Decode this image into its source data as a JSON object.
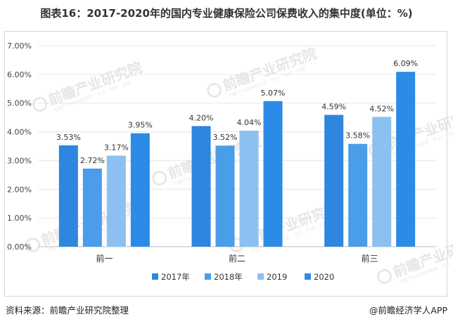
{
  "title": "图表16：2017-2020年的国内专业健康保险公司保费收入的集中度(单位：%)",
  "footer": {
    "source": "资料来源：前瞻产业研究院整理",
    "brand": "@前瞻经济学人APP"
  },
  "watermark": {
    "text": "前瞻产业研究院",
    "subtext": "中国产业咨询领导者 · 专业 · 权威 · 前瞻"
  },
  "colors": {
    "2017年": "#2e86de",
    "2018年": "#4a9de8",
    "2019": "#8cc0f0",
    "2020": "#2c8be6"
  },
  "chart_data": {
    "type": "bar",
    "categories": [
      "前一",
      "前二",
      "前三"
    ],
    "series": [
      {
        "name": "2017年",
        "values": [
          3.53,
          4.2,
          4.59
        ]
      },
      {
        "name": "2018年",
        "values": [
          2.72,
          3.52,
          3.58
        ]
      },
      {
        "name": "2019",
        "values": [
          3.17,
          4.04,
          4.52
        ]
      },
      {
        "name": "2020",
        "values": [
          3.95,
          5.07,
          6.09
        ]
      }
    ],
    "data_labels": [
      [
        "3.53%",
        "4.20%",
        "4.59%"
      ],
      [
        "2.72%",
        "3.52%",
        "3.58%"
      ],
      [
        "3.17%",
        "4.04%",
        "4.52%"
      ],
      [
        "3.95%",
        "5.07%",
        "6.09%"
      ]
    ],
    "y_ticks": [
      "0.00%",
      "1.00%",
      "2.00%",
      "3.00%",
      "4.00%",
      "5.00%",
      "6.00%",
      "7.00%"
    ],
    "ylim": [
      0,
      7
    ],
    "grid": true,
    "legend_position": "bottom"
  }
}
